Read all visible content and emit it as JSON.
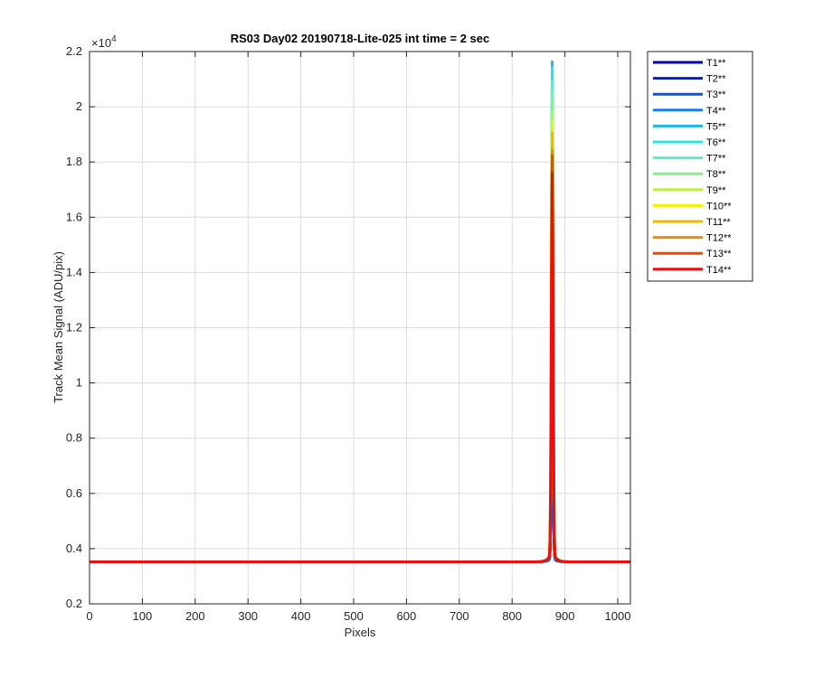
{
  "chart_data": {
    "type": "line",
    "title": "RS03 Day02 20190718-Lite-025 int time = 2 sec",
    "xlabel": "Pixels",
    "ylabel": "Track Mean Signal (ADU/pix)",
    "y_exponent_label": "×10",
    "y_exponent_power": "4",
    "xlim": [
      0,
      1024
    ],
    "ylim": [
      0.2,
      2.2
    ],
    "y_scale_factor": 10000,
    "x_ticks": [
      0,
      100,
      200,
      300,
      400,
      500,
      600,
      700,
      800,
      900,
      1000
    ],
    "x_tick_labels": [
      "0",
      "100",
      "200",
      "300",
      "400",
      "500",
      "600",
      "700",
      "800",
      "900",
      "1000"
    ],
    "y_ticks": [
      0.2,
      0.4,
      0.6,
      0.8,
      1,
      1.2,
      1.4,
      1.6,
      1.8,
      2,
      2.2
    ],
    "y_tick_labels": [
      "0.2",
      "0.4",
      "0.6",
      "0.8",
      "1",
      "1.2",
      "1.4",
      "1.6",
      "1.8",
      "2",
      "2.2"
    ],
    "grid": true,
    "legend_position": "outside-top-right",
    "baseline": 0.352,
    "peak_x": 876,
    "series": [
      {
        "name": "T1**",
        "color": "#0000a8",
        "peak": 0.98
      },
      {
        "name": "T2**",
        "color": "#0022cc",
        "peak": 1.05
      },
      {
        "name": "T3**",
        "color": "#0a52e0",
        "peak": 1.15
      },
      {
        "name": "T4**",
        "color": "#1a7fe8",
        "peak": 1.3
      },
      {
        "name": "T5**",
        "color": "#22b4e8",
        "peak": 2.11
      },
      {
        "name": "T6**",
        "color": "#2ae5e5",
        "peak": 2.09
      },
      {
        "name": "T7**",
        "color": "#5aefc0",
        "peak": 2.04
      },
      {
        "name": "T8**",
        "color": "#88f088",
        "peak": 2.0
      },
      {
        "name": "T9**",
        "color": "#bff04a",
        "peak": 1.94
      },
      {
        "name": "T10**",
        "color": "#f2f000",
        "peak": 1.9
      },
      {
        "name": "T11**",
        "color": "#f5b800",
        "peak": 1.86
      },
      {
        "name": "T12**",
        "color": "#f58a00",
        "peak": 1.8
      },
      {
        "name": "T13**",
        "color": "#f54500",
        "peak": 1.78
      },
      {
        "name": "T14**",
        "color": "#e81010",
        "peak": 1.72
      }
    ]
  }
}
